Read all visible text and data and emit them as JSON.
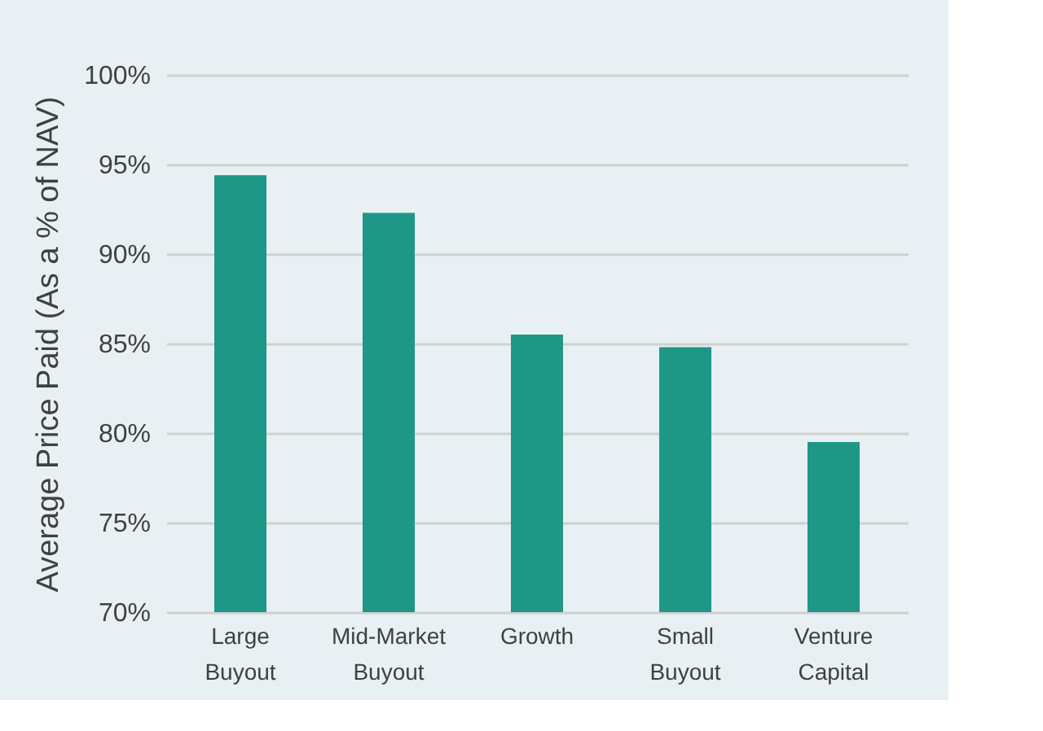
{
  "chart_data": {
    "type": "bar",
    "ylabel": "Average Price Paid (As a % of NAV)",
    "categories": [
      "Large Buyout",
      "Mid-Market Buyout",
      "Growth",
      "Small Buyout",
      "Venture Capital"
    ],
    "values": [
      94.4,
      92.3,
      85.5,
      84.8,
      79.5
    ],
    "color": "#1e9787",
    "ylim": [
      70,
      100
    ],
    "yticks": [
      {
        "value": 70,
        "label": "70%"
      },
      {
        "value": 75,
        "label": "75%"
      },
      {
        "value": 80,
        "label": "80%"
      },
      {
        "value": 85,
        "label": "85%"
      },
      {
        "value": 90,
        "label": "90%"
      },
      {
        "value": 95,
        "label": "95%"
      },
      {
        "value": 100,
        "label": "100%"
      }
    ],
    "grid": "y"
  }
}
